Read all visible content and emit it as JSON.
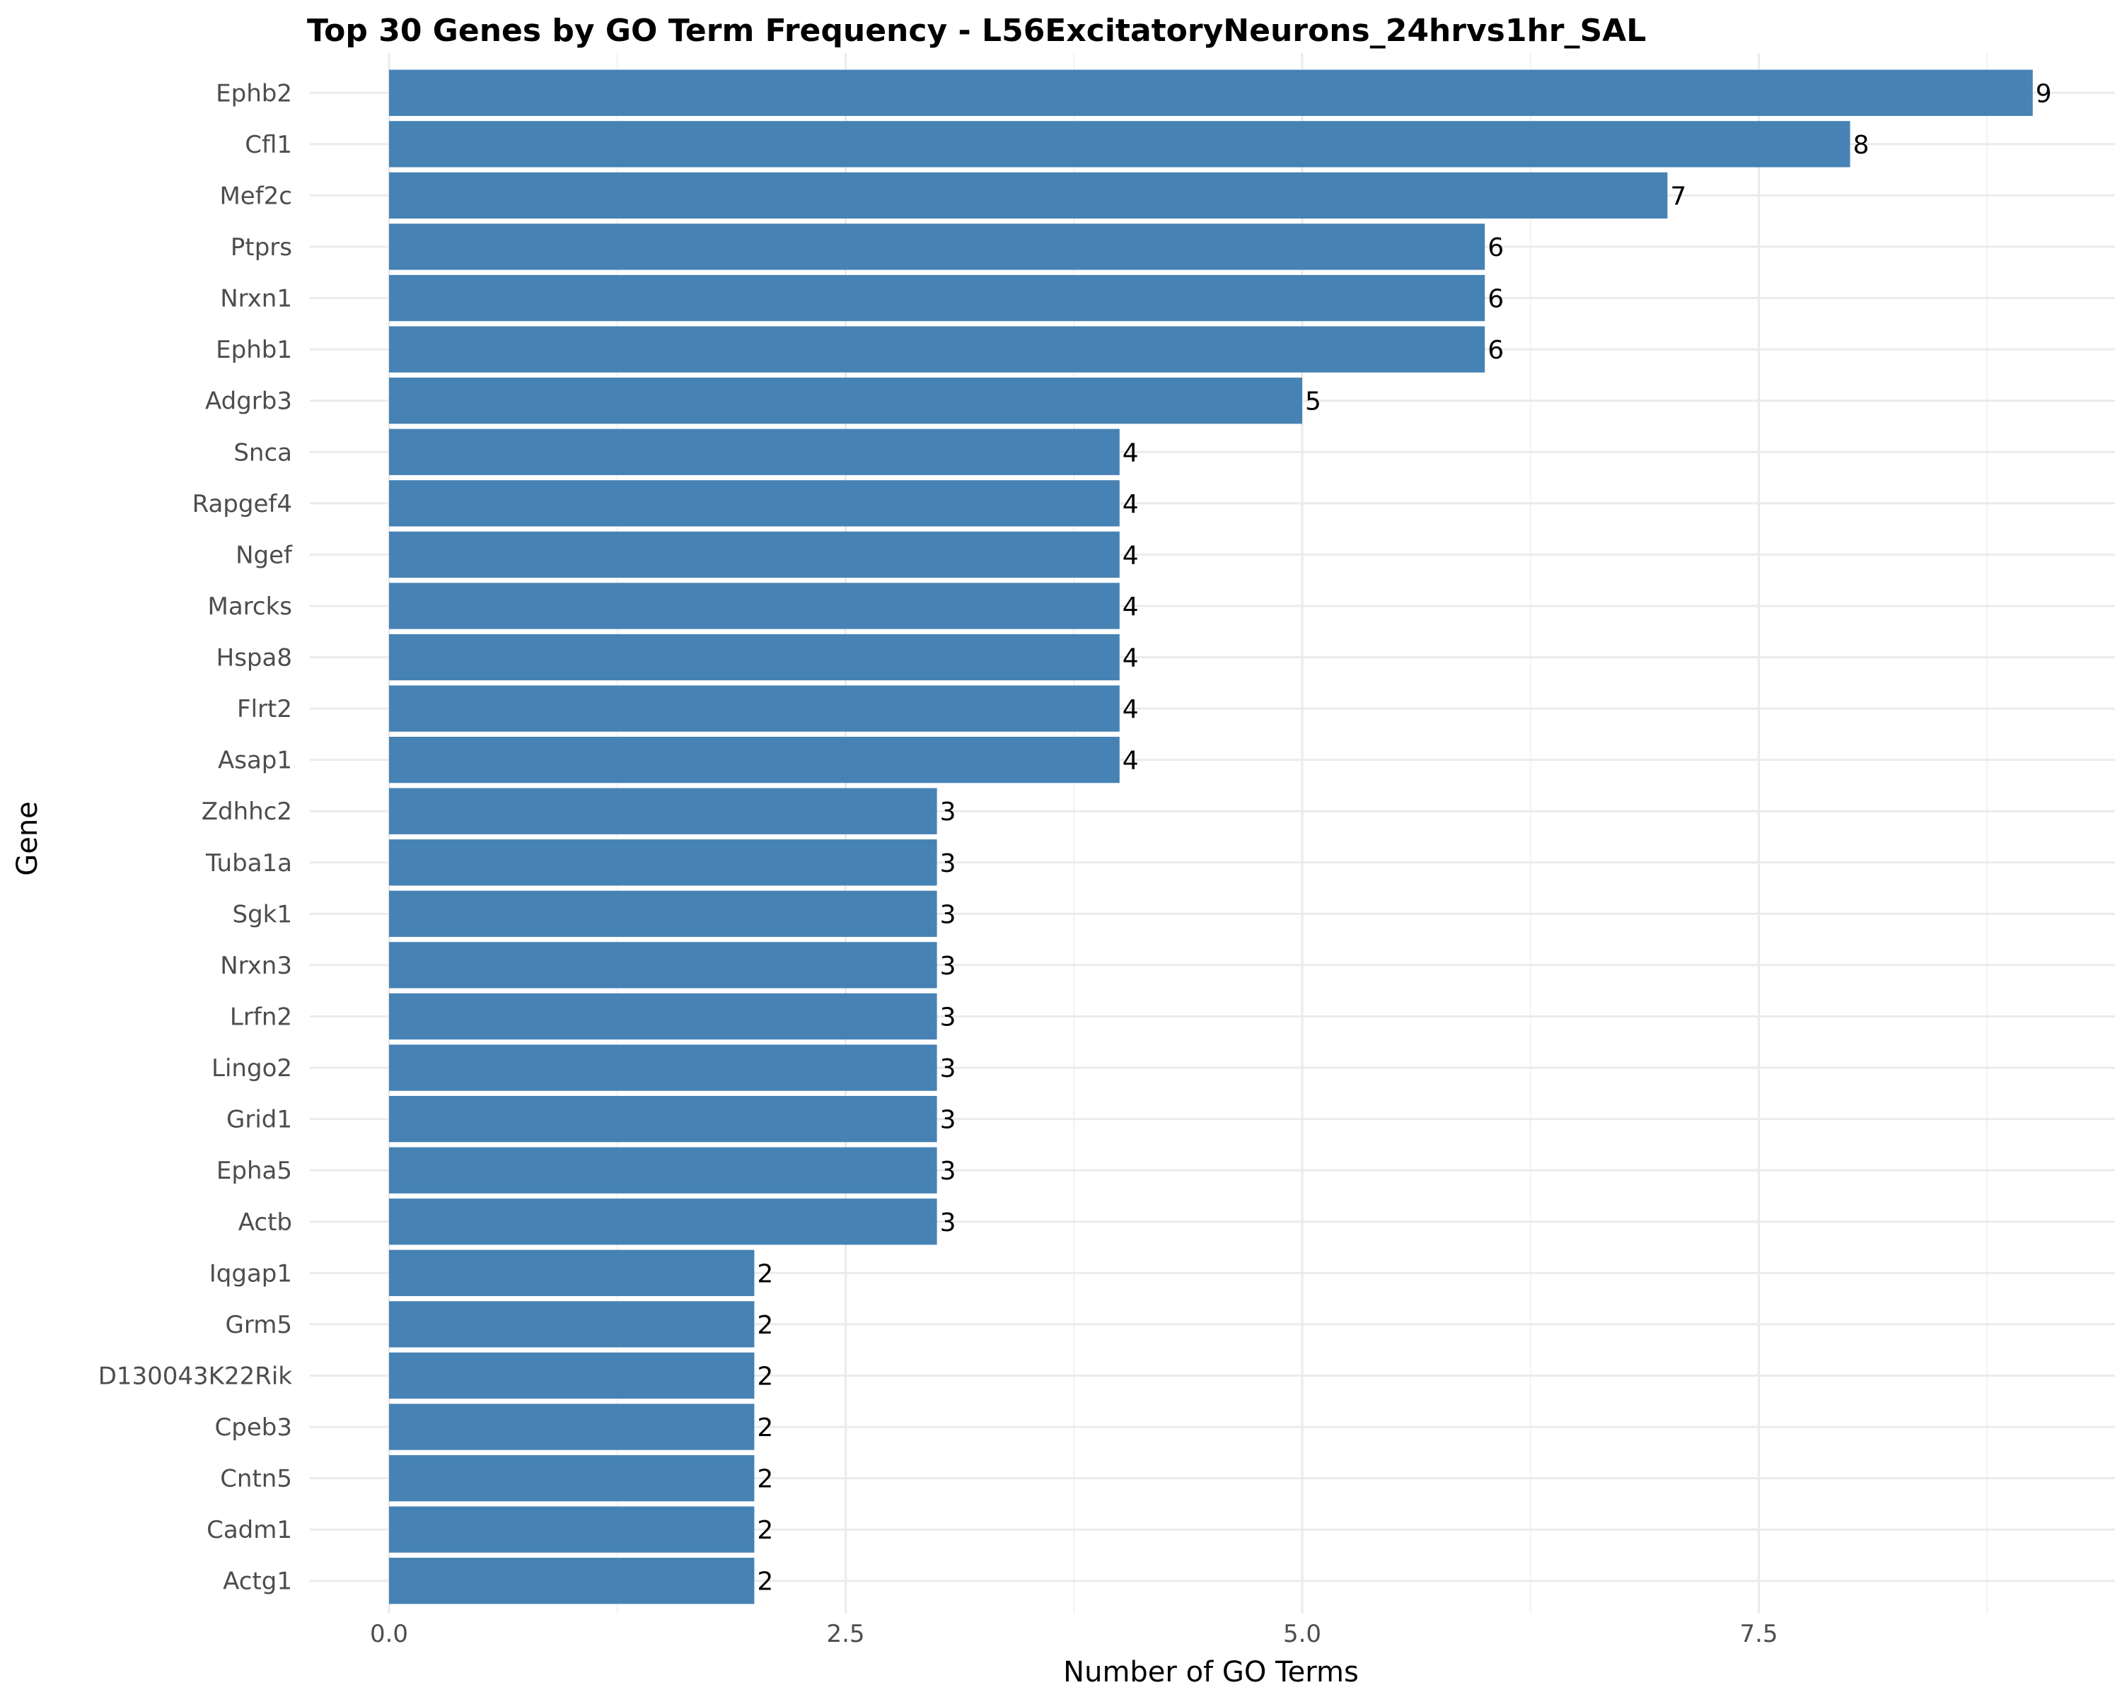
{
  "chart_data": {
    "type": "bar",
    "orientation": "horizontal",
    "title": "Top 30 Genes by GO Term Frequency - L56ExcitatoryNeurons_24hrvs1hr_SAL",
    "xlabel": "Number of GO Terms",
    "ylabel": "Gene",
    "xlim": [
      0,
      9
    ],
    "x_ticks": [
      "0.0",
      "2.5",
      "5.0",
      "7.5"
    ],
    "x_tick_values": [
      0,
      2.5,
      5,
      7.5
    ],
    "grid": true,
    "bar_color": "#4682B4",
    "categories": [
      "Ephb2",
      "Cfl1",
      "Mef2c",
      "Ptprs",
      "Nrxn1",
      "Ephb1",
      "Adgrb3",
      "Snca",
      "Rapgef4",
      "Ngef",
      "Marcks",
      "Hspa8",
      "Flrt2",
      "Asap1",
      "Zdhhc2",
      "Tuba1a",
      "Sgk1",
      "Nrxn3",
      "Lrfn2",
      "Lingo2",
      "Grid1",
      "Epha5",
      "Actb",
      "Iqgap1",
      "Grm5",
      "D130043K22Rik",
      "Cpeb3",
      "Cntn5",
      "Cadm1",
      "Actg1"
    ],
    "values": [
      9,
      8,
      7,
      6,
      6,
      6,
      5,
      4,
      4,
      4,
      4,
      4,
      4,
      4,
      3,
      3,
      3,
      3,
      3,
      3,
      3,
      3,
      3,
      2,
      2,
      2,
      2,
      2,
      2,
      2
    ],
    "data_labels": [
      "9",
      "8",
      "7",
      "6",
      "6",
      "6",
      "5",
      "4",
      "4",
      "4",
      "4",
      "4",
      "4",
      "4",
      "3",
      "3",
      "3",
      "3",
      "3",
      "3",
      "3",
      "3",
      "3",
      "2",
      "2",
      "2",
      "2",
      "2",
      "2",
      "2"
    ]
  }
}
